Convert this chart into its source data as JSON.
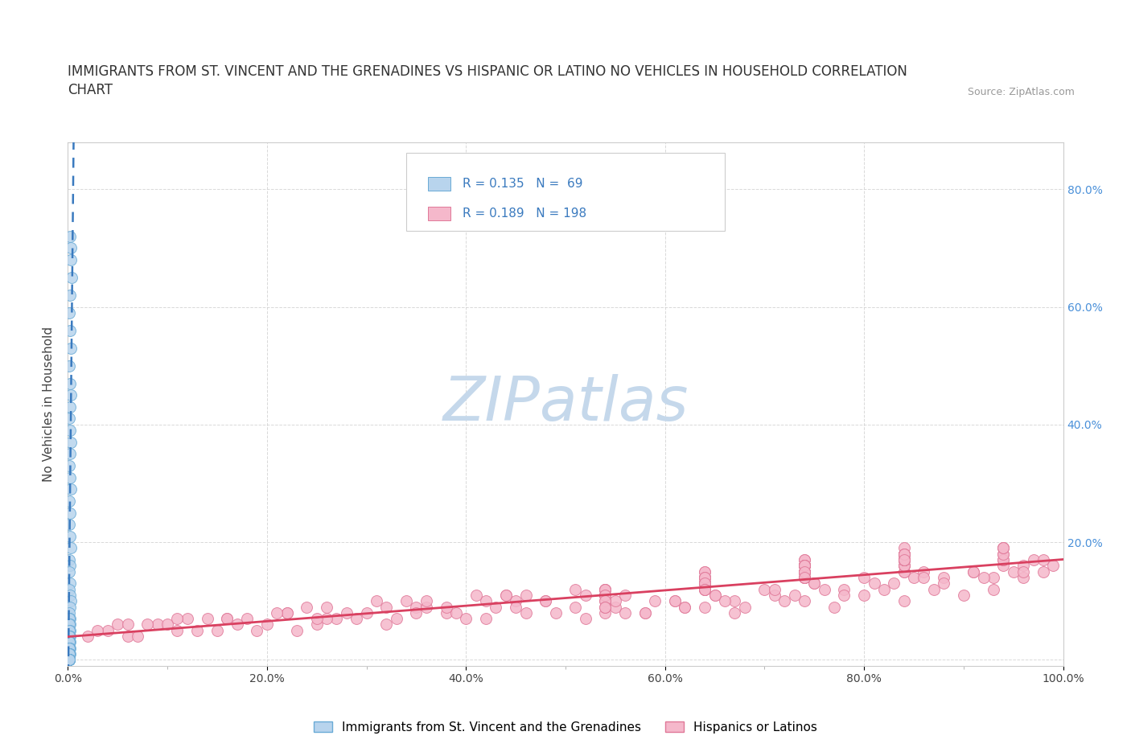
{
  "title_line1": "IMMIGRANTS FROM ST. VINCENT AND THE GRENADINES VS HISPANIC OR LATINO NO VEHICLES IN HOUSEHOLD CORRELATION",
  "title_line2": "CHART",
  "source_text": "Source: ZipAtlas.com",
  "ylabel": "No Vehicles in Household",
  "xlim": [
    0.0,
    1.0
  ],
  "ylim": [
    -0.01,
    0.88
  ],
  "xtick_labels": [
    "0.0%",
    "",
    "20.0%",
    "",
    "40.0%",
    "",
    "60.0%",
    "",
    "80.0%",
    "",
    "100.0%"
  ],
  "ytick_labels": [
    "",
    "20.0%",
    "40.0%",
    "60.0%",
    "80.0%"
  ],
  "ytick_vals": [
    0.0,
    0.2,
    0.4,
    0.6,
    0.8
  ],
  "xtick_vals": [
    0.0,
    0.1,
    0.2,
    0.3,
    0.4,
    0.5,
    0.6,
    0.7,
    0.8,
    0.9,
    1.0
  ],
  "blue_R": 0.135,
  "blue_N": 69,
  "pink_R": 0.189,
  "pink_N": 198,
  "legend_label_blue": "Immigrants from St. Vincent and the Grenadines",
  "legend_label_pink": "Hispanics or Latinos",
  "scatter_color_blue": "#b8d4ed",
  "scatter_edge_blue": "#6aabd6",
  "scatter_color_pink": "#f5b8cb",
  "scatter_edge_pink": "#e07898",
  "trendline_color_blue": "#3a7abf",
  "trendline_color_pink": "#d94060",
  "grid_color": "#d0d0d0",
  "background_color": "#ffffff",
  "watermark_text": "ZIPatlas",
  "watermark_color": "#c5d8eb",
  "title_fontsize": 12,
  "axis_label_fontsize": 11,
  "tick_fontsize": 10,
  "legend_fontsize": 11,
  "ytick_color": "#4a90d9",
  "blue_scatter_x": [
    0.002,
    0.003,
    0.003,
    0.004,
    0.002,
    0.001,
    0.002,
    0.003,
    0.001,
    0.002,
    0.003,
    0.002,
    0.001,
    0.002,
    0.003,
    0.002,
    0.001,
    0.002,
    0.003,
    0.001,
    0.002,
    0.001,
    0.002,
    0.003,
    0.001,
    0.002,
    0.001,
    0.002,
    0.001,
    0.002,
    0.003,
    0.002,
    0.001,
    0.002,
    0.001,
    0.002,
    0.001,
    0.002,
    0.001,
    0.001,
    0.002,
    0.001,
    0.002,
    0.001,
    0.001,
    0.002,
    0.001,
    0.001,
    0.001,
    0.002,
    0.001,
    0.001,
    0.001,
    0.001,
    0.001,
    0.001,
    0.001,
    0.001,
    0.001,
    0.001,
    0.001,
    0.001,
    0.001,
    0.001,
    0.001,
    0.001,
    0.001,
    0.001,
    0.001
  ],
  "blue_scatter_y": [
    0.72,
    0.7,
    0.68,
    0.65,
    0.62,
    0.59,
    0.56,
    0.53,
    0.5,
    0.47,
    0.45,
    0.43,
    0.41,
    0.39,
    0.37,
    0.35,
    0.33,
    0.31,
    0.29,
    0.27,
    0.25,
    0.23,
    0.21,
    0.19,
    0.17,
    0.16,
    0.15,
    0.13,
    0.12,
    0.11,
    0.1,
    0.09,
    0.08,
    0.07,
    0.07,
    0.06,
    0.06,
    0.05,
    0.05,
    0.04,
    0.04,
    0.04,
    0.03,
    0.03,
    0.03,
    0.02,
    0.02,
    0.02,
    0.02,
    0.01,
    0.01,
    0.01,
    0.01,
    0.01,
    0.01,
    0.0,
    0.0,
    0.0,
    0.0,
    0.0,
    0.0,
    0.0,
    0.0,
    0.0,
    0.0,
    0.0,
    0.0,
    0.0,
    0.0
  ],
  "pink_scatter_x": [
    0.02,
    0.04,
    0.06,
    0.09,
    0.11,
    0.14,
    0.17,
    0.19,
    0.22,
    0.25,
    0.27,
    0.3,
    0.33,
    0.35,
    0.38,
    0.4,
    0.43,
    0.46,
    0.48,
    0.51,
    0.54,
    0.56,
    0.59,
    0.62,
    0.65,
    0.67,
    0.7,
    0.73,
    0.75,
    0.78,
    0.8,
    0.83,
    0.86,
    0.88,
    0.91,
    0.93,
    0.96,
    0.97,
    0.98,
    0.99,
    0.03,
    0.07,
    0.1,
    0.13,
    0.16,
    0.2,
    0.23,
    0.26,
    0.29,
    0.32,
    0.36,
    0.39,
    0.42,
    0.45,
    0.49,
    0.52,
    0.55,
    0.58,
    0.61,
    0.64,
    0.67,
    0.71,
    0.74,
    0.77,
    0.8,
    0.84,
    0.87,
    0.9,
    0.93,
    0.96,
    0.05,
    0.15,
    0.25,
    0.35,
    0.45,
    0.55,
    0.65,
    0.75,
    0.85,
    0.95,
    0.08,
    0.18,
    0.28,
    0.38,
    0.48,
    0.58,
    0.68,
    0.78,
    0.88,
    0.98,
    0.12,
    0.22,
    0.32,
    0.42,
    0.52,
    0.62,
    0.72,
    0.82,
    0.92,
    0.06,
    0.16,
    0.26,
    0.36,
    0.46,
    0.56,
    0.66,
    0.76,
    0.86,
    0.96,
    0.11,
    0.21,
    0.31,
    0.41,
    0.51,
    0.61,
    0.71,
    0.81,
    0.91,
    0.24,
    0.44,
    0.64,
    0.84,
    0.34,
    0.54,
    0.74,
    0.94,
    0.44,
    0.64,
    0.84,
    0.74,
    0.94,
    0.54,
    0.74,
    0.64,
    0.84,
    0.94,
    0.74,
    0.84,
    0.64,
    0.94,
    0.74,
    0.84,
    0.54,
    0.74,
    0.84,
    0.64,
    0.94,
    0.74,
    0.64,
    0.84,
    0.74,
    0.94,
    0.54,
    0.84,
    0.64,
    0.74,
    0.84,
    0.54,
    0.74,
    0.64,
    0.84,
    0.74,
    0.94,
    0.64,
    0.74,
    0.84,
    0.54,
    0.64,
    0.74,
    0.84,
    0.94,
    0.64,
    0.74,
    0.84,
    0.54,
    0.64,
    0.74,
    0.84,
    0.64,
    0.74,
    0.54,
    0.64,
    0.74,
    0.84,
    0.74,
    0.64,
    0.84,
    0.74,
    0.54,
    0.64,
    0.84,
    0.74,
    0.64,
    0.54,
    0.74,
    0.84,
    0.64,
    0.74,
    0.54,
    0.84,
    0.64,
    0.74,
    0.84,
    0.74,
    0.64,
    0.84,
    0.74,
    0.64,
    0.84,
    0.54,
    0.74,
    0.64
  ],
  "pink_scatter_y": [
    0.04,
    0.05,
    0.04,
    0.06,
    0.05,
    0.07,
    0.06,
    0.05,
    0.08,
    0.06,
    0.07,
    0.08,
    0.07,
    0.09,
    0.08,
    0.07,
    0.09,
    0.08,
    0.1,
    0.09,
    0.08,
    0.11,
    0.1,
    0.09,
    0.11,
    0.1,
    0.12,
    0.11,
    0.13,
    0.12,
    0.14,
    0.13,
    0.15,
    0.14,
    0.15,
    0.14,
    0.16,
    0.17,
    0.17,
    0.16,
    0.05,
    0.04,
    0.06,
    0.05,
    0.07,
    0.06,
    0.05,
    0.07,
    0.07,
    0.06,
    0.09,
    0.08,
    0.07,
    0.1,
    0.08,
    0.07,
    0.09,
    0.08,
    0.1,
    0.09,
    0.08,
    0.11,
    0.1,
    0.09,
    0.11,
    0.1,
    0.12,
    0.11,
    0.12,
    0.14,
    0.06,
    0.05,
    0.07,
    0.08,
    0.09,
    0.1,
    0.11,
    0.13,
    0.14,
    0.15,
    0.06,
    0.07,
    0.08,
    0.09,
    0.1,
    0.08,
    0.09,
    0.11,
    0.13,
    0.15,
    0.07,
    0.08,
    0.09,
    0.1,
    0.11,
    0.09,
    0.1,
    0.12,
    0.14,
    0.06,
    0.07,
    0.09,
    0.1,
    0.11,
    0.08,
    0.1,
    0.12,
    0.14,
    0.15,
    0.07,
    0.08,
    0.1,
    0.11,
    0.12,
    0.1,
    0.12,
    0.13,
    0.15,
    0.09,
    0.11,
    0.13,
    0.15,
    0.1,
    0.12,
    0.14,
    0.16,
    0.11,
    0.13,
    0.15,
    0.14,
    0.17,
    0.12,
    0.14,
    0.13,
    0.16,
    0.18,
    0.15,
    0.16,
    0.12,
    0.17,
    0.14,
    0.16,
    0.11,
    0.15,
    0.17,
    0.13,
    0.19,
    0.16,
    0.12,
    0.17,
    0.15,
    0.18,
    0.1,
    0.18,
    0.13,
    0.16,
    0.17,
    0.11,
    0.16,
    0.14,
    0.18,
    0.16,
    0.19,
    0.14,
    0.17,
    0.18,
    0.12,
    0.14,
    0.16,
    0.17,
    0.19,
    0.13,
    0.15,
    0.17,
    0.11,
    0.14,
    0.16,
    0.18,
    0.15,
    0.17,
    0.12,
    0.15,
    0.16,
    0.18,
    0.16,
    0.13,
    0.18,
    0.15,
    0.11,
    0.14,
    0.19,
    0.16,
    0.13,
    0.1,
    0.15,
    0.17,
    0.13,
    0.15,
    0.09,
    0.17,
    0.14,
    0.16,
    0.18,
    0.16,
    0.13,
    0.18,
    0.15,
    0.12,
    0.17,
    0.09,
    0.14,
    0.12
  ]
}
